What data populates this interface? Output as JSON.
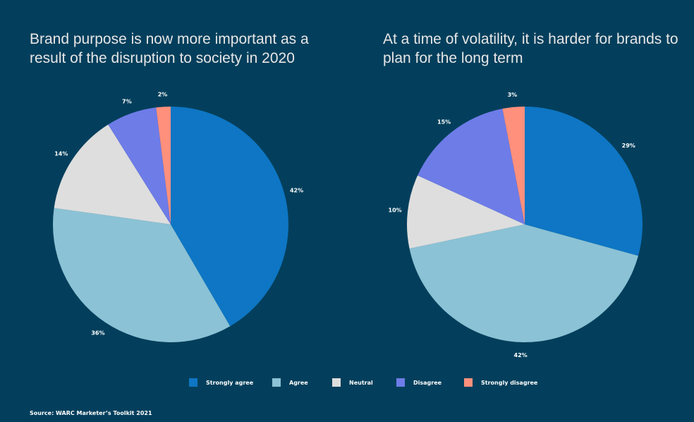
{
  "chart_data": [
    {
      "type": "pie",
      "title": "Brand purpose is now more important as a result of the disruption to society in 2020",
      "categories": [
        "Strongly agree",
        "Agree",
        "Neutral",
        "Disagree",
        "Strongly disagree"
      ],
      "values": [
        42,
        36,
        14,
        7,
        2
      ],
      "labels": [
        "42%",
        "36%",
        "14%",
        "7%",
        "2%"
      ],
      "start": "12 o'clock, clockwise"
    },
    {
      "type": "pie",
      "title": "At a time of volatility, it is harder for brands to plan for the long term",
      "categories": [
        "Strongly agree",
        "Agree",
        "Neutral",
        "Disagree",
        "Strongly disagree"
      ],
      "values": [
        29,
        42,
        10,
        15,
        3
      ],
      "labels": [
        "29%",
        "42%",
        "10%",
        "15%",
        "3%"
      ],
      "start": "12 o'clock, clockwise"
    }
  ],
  "legend": {
    "placement": "bottom-center",
    "items": [
      {
        "label": "Strongly agree",
        "color": "#0e76c4"
      },
      {
        "label": "Agree",
        "color": "#8bc2d5"
      },
      {
        "label": "Neutral",
        "color": "#dedede"
      },
      {
        "label": "Disagree",
        "color": "#6e7ce8"
      },
      {
        "label": "Strongly disagree",
        "color": "#fe907c"
      }
    ]
  },
  "source": "Source: WARC Marketer’s Toolkit 2021"
}
